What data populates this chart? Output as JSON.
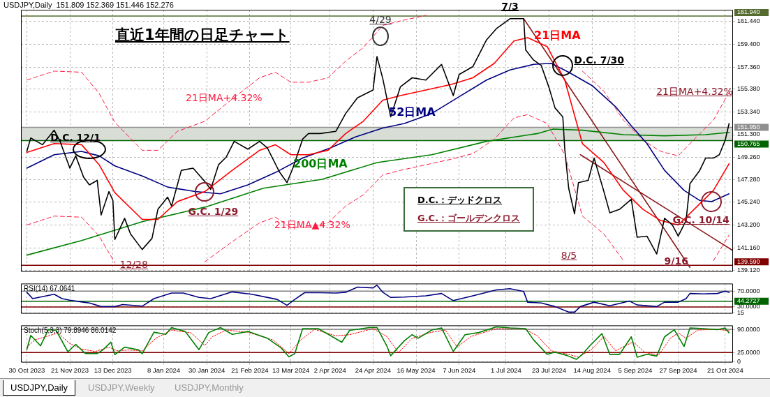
{
  "chart_data": [
    {
      "type": "line",
      "title": "直近1年間の日足チャート",
      "subtitle": "USDJPY,Daily  151.809 152.369 151.446 152.276",
      "tick_labels": "y",
      "grid": true,
      "xlim": [
        "2023-10-27",
        "2024-10-25"
      ],
      "xticks": [
        {
          "value": "2023-10-30",
          "label": null
        },
        {
          "value": "2023-11-21",
          "label": null
        },
        {
          "value": "2023-12-13",
          "label": null
        },
        {
          "value": "2024-01-08",
          "label": null
        },
        {
          "value": "2024-01-30",
          "label": null
        },
        {
          "value": "2024-02-21",
          "label": null
        },
        {
          "value": "2024-03-13",
          "label": null
        },
        {
          "value": "2024-04-02",
          "label": null
        },
        {
          "value": "2024-04-24",
          "label": null
        },
        {
          "value": "2024-05-16",
          "label": null
        },
        {
          "value": "2024-06-07",
          "label": null
        },
        {
          "value": "2024-07-01",
          "label": null
        },
        {
          "value": "2024-07-23",
          "label": null
        },
        {
          "value": "2024-08-14",
          "label": null
        },
        {
          "value": "2024-09-05",
          "label": null
        },
        {
          "value": "2024-09-27",
          "label": null
        },
        {
          "value": "2024-10-21",
          "label": null
        }
      ],
      "ylim": [
        139.0,
        162.5
      ],
      "yticks": [
        {
          "value": 139.12,
          "label": "139.120"
        },
        {
          "value": 141.16,
          "label": "141.160"
        },
        {
          "value": 143.2,
          "label": "143.200"
        },
        {
          "value": 145.24,
          "label": "145.240"
        },
        {
          "value": 147.28,
          "label": "147.280"
        },
        {
          "value": 149.26,
          "label": "149.260"
        },
        {
          "value": 151.3,
          "label": "151.300"
        },
        {
          "value": 153.34,
          "label": "153.340"
        },
        {
          "value": 155.38,
          "label": "155.380"
        },
        {
          "value": 157.36,
          "label": "157.360"
        },
        {
          "value": 159.4,
          "label": "159.400"
        },
        {
          "value": 161.44,
          "label": "161.440"
        }
      ],
      "series": [
        {
          "color": "#000000",
          "x": [
            "2023-10-30",
            "2023-11-01",
            "2023-11-07",
            "2023-11-13",
            "2023-11-16",
            "2023-11-21",
            "2023-11-24",
            "2023-11-28",
            "2023-12-01",
            "2023-12-05",
            "2023-12-07",
            "2023-12-11",
            "2023-12-13",
            "2023-12-14",
            "2023-12-19",
            "2023-12-22",
            "2023-12-28",
            "2024-01-02",
            "2024-01-05",
            "2024-01-10",
            "2024-01-12",
            "2024-01-17",
            "2024-01-23",
            "2024-01-29",
            "2024-02-01",
            "2024-02-05",
            "2024-02-09",
            "2024-02-13",
            "2024-02-20",
            "2024-02-26",
            "2024-03-01",
            "2024-03-07",
            "2024-03-11",
            "2024-03-14",
            "2024-03-19",
            "2024-03-22",
            "2024-03-28",
            "2024-04-05",
            "2024-04-10",
            "2024-04-16",
            "2024-04-24",
            "2024-04-26",
            "2024-04-29",
            "2024-05-03",
            "2024-05-08",
            "2024-05-14",
            "2024-05-21",
            "2024-05-29",
            "2024-06-04",
            "2024-06-07",
            "2024-06-14",
            "2024-06-21",
            "2024-06-26",
            "2024-07-03",
            "2024-07-10",
            "2024-07-11",
            "2024-07-15",
            "2024-07-19",
            "2024-07-23",
            "2024-07-26",
            "2024-07-30",
            "2024-07-31",
            "2024-08-02",
            "2024-08-05",
            "2024-08-07",
            "2024-08-12",
            "2024-08-15",
            "2024-08-20",
            "2024-08-23",
            "2024-08-28",
            "2024-09-03",
            "2024-09-06",
            "2024-09-11",
            "2024-09-16",
            "2024-09-20",
            "2024-09-24",
            "2024-09-27",
            "2024-10-01",
            "2024-10-03",
            "2024-10-08",
            "2024-10-11",
            "2024-10-15",
            "2024-10-18",
            "2024-10-21",
            "2024-10-23"
          ],
          "values": [
            149.8,
            151.0,
            150.4,
            151.7,
            150.7,
            148.3,
            149.4,
            147.5,
            146.8,
            147.2,
            144.1,
            146.2,
            145.4,
            141.9,
            143.8,
            142.4,
            141.0,
            142.0,
            144.6,
            145.7,
            144.9,
            148.1,
            148.3,
            147.1,
            146.4,
            148.6,
            149.3,
            150.7,
            150.0,
            150.7,
            150.1,
            148.0,
            147.0,
            148.3,
            150.9,
            151.4,
            151.4,
            151.6,
            153.2,
            154.6,
            155.3,
            158.3,
            156.3,
            152.9,
            155.6,
            156.4,
            156.2,
            157.6,
            154.8,
            156.7,
            157.4,
            159.8,
            160.8,
            161.7,
            161.7,
            158.9,
            158.0,
            157.5,
            155.5,
            153.7,
            152.9,
            150.0,
            146.5,
            144.2,
            147.0,
            147.2,
            149.2,
            146.2,
            144.3,
            144.6,
            145.5,
            142.1,
            142.2,
            140.6,
            143.8,
            143.2,
            142.2,
            143.6,
            146.9,
            148.1,
            149.2,
            149.2,
            149.5,
            150.8,
            152.3
          ]
        },
        {
          "name": "21日MA",
          "color": "#ff0000",
          "x": [
            "2023-10-30",
            "2023-11-13",
            "2023-11-27",
            "2023-12-06",
            "2023-12-14",
            "2023-12-28",
            "2024-01-05",
            "2024-01-15",
            "2024-01-29",
            "2024-02-12",
            "2024-02-26",
            "2024-03-05",
            "2024-03-13",
            "2024-03-22",
            "2024-04-01",
            "2024-04-10",
            "2024-04-19",
            "2024-04-29",
            "2024-05-08",
            "2024-05-21",
            "2024-06-03",
            "2024-06-14",
            "2024-06-25",
            "2024-07-05",
            "2024-07-12",
            "2024-07-22",
            "2024-07-31",
            "2024-08-09",
            "2024-08-20",
            "2024-08-30",
            "2024-09-09",
            "2024-09-18",
            "2024-09-27",
            "2024-10-08",
            "2024-10-15",
            "2024-10-23"
          ],
          "values": [
            149.7,
            150.5,
            150.4,
            148.6,
            146.1,
            143.7,
            143.7,
            145.3,
            146.2,
            148.1,
            149.9,
            150.4,
            149.5,
            149.5,
            149.9,
            151.4,
            152.5,
            154.4,
            154.8,
            155.3,
            155.8,
            156.4,
            157.7,
            159.7,
            160.0,
            159.2,
            156.2,
            150.5,
            148.8,
            146.3,
            144.6,
            143.6,
            143.2,
            145.1,
            146.3,
            148.7
          ]
        },
        {
          "name": "52日MA",
          "color": "#000080",
          "x": [
            "2023-10-30",
            "2023-11-13",
            "2023-11-27",
            "2023-12-06",
            "2023-12-14",
            "2023-12-28",
            "2024-01-10",
            "2024-01-24",
            "2024-02-06",
            "2024-02-20",
            "2024-03-05",
            "2024-03-19",
            "2024-04-02",
            "2024-04-15",
            "2024-04-29",
            "2024-05-10",
            "2024-05-24",
            "2024-06-07",
            "2024-06-21",
            "2024-07-03",
            "2024-07-15",
            "2024-07-24",
            "2024-08-02",
            "2024-08-14",
            "2024-08-26",
            "2024-09-03",
            "2024-09-11",
            "2024-09-20",
            "2024-09-30",
            "2024-10-08",
            "2024-10-14",
            "2024-10-23"
          ],
          "values": [
            148.3,
            149.5,
            149.8,
            149.4,
            148.5,
            147.6,
            146.6,
            146.2,
            146.0,
            146.8,
            147.9,
            149.2,
            150.1,
            151.1,
            151.9,
            152.3,
            153.2,
            154.7,
            156.2,
            157.1,
            157.6,
            157.7,
            156.9,
            155.7,
            153.8,
            152.1,
            150.5,
            148.1,
            146.3,
            145.4,
            145.3,
            146.0
          ]
        },
        {
          "name": "200日MA",
          "color": "#008000",
          "x": [
            "2023-10-30",
            "2023-11-27",
            "2023-12-28",
            "2024-01-29",
            "2024-02-28",
            "2024-03-29",
            "2024-04-26",
            "2024-05-24",
            "2024-06-21",
            "2024-07-17",
            "2024-07-25",
            "2024-08-09",
            "2024-08-30",
            "2024-09-20",
            "2024-10-11",
            "2024-10-23"
          ],
          "values": [
            140.5,
            141.8,
            143.5,
            144.8,
            146.5,
            147.3,
            148.8,
            149.5,
            150.7,
            151.4,
            151.8,
            151.7,
            151.3,
            151.2,
            151.3,
            151.5
          ]
        },
        {
          "name": "21日MA+4.32%",
          "color": "#ff1a40",
          "line_style": "dashed",
          "x": [
            "2023-10-30",
            "2023-11-13",
            "2023-11-27",
            "2023-12-06",
            "2023-12-14",
            "2023-12-28",
            "2024-01-05",
            "2024-01-15",
            "2024-01-29",
            "2024-02-12",
            "2024-02-26",
            "2024-03-05",
            "2024-03-13",
            "2024-03-22",
            "2024-04-01",
            "2024-04-10",
            "2024-04-19",
            "2024-04-29",
            "2024-05-08",
            "2024-05-21",
            "2024-06-03",
            "2024-06-14",
            "2024-06-25",
            "2024-07-05",
            "2024-07-12",
            "2024-07-22",
            "2024-07-31",
            "2024-08-09",
            "2024-08-20",
            "2024-08-30",
            "2024-09-09",
            "2024-09-18",
            "2024-09-27",
            "2024-10-08",
            "2024-10-15",
            "2024-10-23"
          ],
          "values": [
            156.2,
            157.0,
            156.9,
            155.0,
            152.4,
            149.9,
            149.9,
            151.6,
            152.5,
            154.5,
            156.4,
            156.9,
            156.0,
            156.0,
            156.4,
            157.9,
            159.1,
            161.1,
            161.5,
            162.0,
            null,
            null,
            null,
            null,
            null,
            null,
            null,
            157.0,
            155.2,
            152.6,
            150.8,
            149.8,
            149.4,
            151.4,
            152.6,
            155.1
          ]
        },
        {
          "name": "21日MA▲4.32%",
          "color": "#ff1a40",
          "line_style": "dashed",
          "x": [
            "2023-10-30",
            "2023-11-13",
            "2023-11-27",
            "2023-12-06",
            "2023-12-14",
            "2023-12-28",
            "2024-01-05",
            "2024-01-15",
            "2024-01-29",
            "2024-02-12",
            "2024-02-26",
            "2024-03-05",
            "2024-03-13",
            "2024-03-22",
            "2024-04-01",
            "2024-04-10",
            "2024-04-19",
            "2024-04-29",
            "2024-05-08",
            "2024-05-21",
            "2024-06-03",
            "2024-06-14",
            "2024-06-25",
            "2024-07-05",
            "2024-07-12",
            "2024-07-22",
            "2024-07-31",
            "2024-08-09",
            "2024-08-20",
            "2024-08-30",
            "2024-09-09",
            "2024-09-18",
            "2024-09-27",
            "2024-10-08",
            "2024-10-15",
            "2024-10-23"
          ],
          "values": [
            143.2,
            144.0,
            143.9,
            142.2,
            139.8,
            null,
            null,
            null,
            139.9,
            141.7,
            143.4,
            143.9,
            143.0,
            143.0,
            143.4,
            144.9,
            145.9,
            147.7,
            148.1,
            148.6,
            149.1,
            149.6,
            150.9,
            152.8,
            153.1,
            152.3,
            149.5,
            144.0,
            142.4,
            140.0,
            null,
            null,
            null,
            null,
            140.0,
            142.3
          ]
        },
        {
          "color": "#8b1a1a",
          "x": [
            "2024-07-10",
            "2024-10-03"
          ],
          "values": [
            161.7,
            139.4
          ]
        },
        {
          "color": "#8b1a1a",
          "x": [
            "2024-08-08",
            "2024-10-25"
          ],
          "values": [
            149.5,
            140.9
          ]
        }
      ],
      "ref_lines": [
        {
          "axis": "y",
          "value": 161.94,
          "label": "161.940",
          "color": "#556b2f"
        },
        {
          "axis": "y",
          "value": 151.95,
          "label": "151.950",
          "color": "#909090"
        },
        {
          "axis": "y",
          "value": 150.765,
          "label": "150.765",
          "color": "#006400"
        },
        {
          "axis": "y",
          "value": 139.59,
          "label": "139.590",
          "color": "#800000"
        }
      ],
      "bands": [
        {
          "axis": "y",
          "from": 150.765,
          "to": 151.95,
          "color": "#d8ddd6"
        }
      ],
      "annotations": [
        "4/29",
        {
          "text": "7/3",
          "x": "2024-07-03",
          "y": 161.9
        },
        {
          "text": "D.C. 12/1",
          "x": "2023-12-01",
          "y": 150.0
        },
        {
          "text": "G.C. 1/29",
          "x": "2024-01-29",
          "y": 146.2
        },
        {
          "text": "D.C. 7/30",
          "x": "2024-07-30",
          "y": 157.5
        },
        {
          "text": "G.C. 10/14",
          "x": "2024-10-14",
          "y": 145.3
        },
        {
          "text": "12/28",
          "x": "2023-12-28",
          "y": 140.8
        },
        "8/5",
        {
          "text": "9/16",
          "x": "2024-09-16",
          "y": 139.6
        },
        "21日MA+4.32%",
        "D.C.：デッドクロス",
        "G.C.：ゴールデンクロス"
      ]
    },
    {
      "type": "line",
      "title": "RSI(14) 67.0641",
      "tick_labels": "y",
      "grid": true,
      "xlim": [
        "2023-10-27",
        "2024-10-25"
      ],
      "xticks": [
        {
          "value": "2023-10-30",
          "label": null
        },
        {
          "value": "2023-11-21",
          "label": null
        },
        {
          "value": "2023-12-13",
          "label": null
        },
        {
          "value": "2024-01-08",
          "label": null
        },
        {
          "value": "2024-01-30",
          "label": null
        },
        {
          "value": "2024-02-21",
          "label": null
        },
        {
          "value": "2024-03-13",
          "label": null
        },
        {
          "value": "2024-04-02",
          "label": null
        },
        {
          "value": "2024-04-24",
          "label": null
        },
        {
          "value": "2024-05-16",
          "label": null
        },
        {
          "value": "2024-06-07",
          "label": null
        },
        {
          "value": "2024-07-01",
          "label": null
        },
        {
          "value": "2024-07-23",
          "label": null
        },
        {
          "value": "2024-08-14",
          "label": null
        },
        {
          "value": "2024-09-05",
          "label": null
        },
        {
          "value": "2024-09-27",
          "label": null
        },
        {
          "value": "2024-10-21",
          "label": null
        }
      ],
      "ylim": [
        13,
        89
      ],
      "yticks": [
        15,
        {
          "value": 30,
          "label": "30.0000"
        },
        {
          "value": 70,
          "label": "70.0000"
        }
      ],
      "series": [
        {
          "color": "#000080",
          "x": [
            "2023-10-30",
            "2023-11-02",
            "2023-11-13",
            "2023-11-17",
            "2023-11-21",
            "2023-11-28",
            "2023-12-01",
            "2023-12-07",
            "2023-12-14",
            "2023-12-18",
            "2023-12-28",
            "2024-01-03",
            "2024-01-12",
            "2024-01-18",
            "2024-01-26",
            "2024-02-01",
            "2024-02-12",
            "2024-02-22",
            "2024-03-06",
            "2024-03-11",
            "2024-03-15",
            "2024-03-20",
            "2024-03-28",
            "2024-04-05",
            "2024-04-10",
            "2024-04-16",
            "2024-04-24",
            "2024-04-26",
            "2024-04-29",
            "2024-05-03",
            "2024-05-10",
            "2024-05-21",
            "2024-05-29",
            "2024-06-04",
            "2024-06-14",
            "2024-06-26",
            "2024-07-03",
            "2024-07-10",
            "2024-07-12",
            "2024-07-19",
            "2024-07-26",
            "2024-08-02",
            "2024-08-05",
            "2024-08-08",
            "2024-08-15",
            "2024-08-23",
            "2024-09-02",
            "2024-09-06",
            "2024-09-16",
            "2024-09-20",
            "2024-09-27",
            "2024-10-01",
            "2024-10-03",
            "2024-10-10",
            "2024-10-17",
            "2024-10-21",
            "2024-10-23"
          ],
          "values": [
            67,
            51,
            62,
            51,
            47,
            42,
            40,
            31,
            31,
            36,
            32,
            51,
            65,
            65,
            54,
            51,
            68,
            62,
            49,
            34,
            49,
            66,
            66,
            65,
            67,
            80,
            78,
            85,
            67,
            54,
            55,
            58,
            64,
            46,
            58,
            73,
            76,
            69,
            42,
            40,
            31,
            17,
            17,
            31,
            42,
            33,
            45,
            35,
            31,
            42,
            42,
            51,
            64,
            63,
            64,
            70,
            67
          ]
        }
      ],
      "ref_lines": [
        {
          "axis": "y",
          "value": 70,
          "color": "#808080"
        },
        {
          "axis": "y",
          "value": 44.2727,
          "label": "44.2727",
          "color": "#006400"
        },
        {
          "axis": "y",
          "value": 30,
          "color": "#800000"
        }
      ]
    },
    {
      "type": "line",
      "title": "Stoch(5,3,3) 79.8946 86.0142",
      "grid": true,
      "xlim": [
        "2023-10-27",
        "2024-10-25"
      ],
      "xticks": [
        {
          "value": "2023-10-30",
          "label": "30 Oct 2023"
        },
        {
          "value": "2023-11-21",
          "label": "21 Nov 2023"
        },
        {
          "value": "2023-12-13",
          "label": "13 Dec 2023"
        },
        {
          "value": "2024-01-08",
          "label": "8 Jan 2024"
        },
        {
          "value": "2024-01-30",
          "label": "30 Jan 2024"
        },
        {
          "value": "2024-02-21",
          "label": "21 Feb 2024"
        },
        {
          "value": "2024-03-13",
          "label": "13 Mar 2024"
        },
        {
          "value": "2024-04-02",
          "label": "2 Apr 2024"
        },
        {
          "value": "2024-04-24",
          "label": "24 Apr 2024"
        },
        {
          "value": "2024-05-16",
          "label": "16 May 2024"
        },
        {
          "value": "2024-06-07",
          "label": "7 Jun 2024"
        },
        {
          "value": "2024-07-01",
          "label": "1 Jul 2024"
        },
        {
          "value": "2024-07-23",
          "label": "23 Jul 2024"
        },
        {
          "value": "2024-08-14",
          "label": "14 Aug 2024"
        },
        {
          "value": "2024-09-05",
          "label": "5 Sep 2024"
        },
        {
          "value": "2024-09-27",
          "label": "27 Sep 2024"
        },
        {
          "value": "2024-10-21",
          "label": "21 Oct 2024"
        }
      ],
      "ylim": [
        -3,
        101
      ],
      "yticks": [
        0,
        {
          "value": 25,
          "label": "25.0000"
        },
        {
          "value": 90,
          "label": "90.0000"
        }
      ],
      "series": [
        {
          "color": "#008000",
          "x": [
            "2023-10-30",
            "2023-11-01",
            "2023-11-06",
            "2023-11-10",
            "2023-11-14",
            "2023-11-20",
            "2023-11-24",
            "2023-11-29",
            "2023-12-05",
            "2023-12-08",
            "2023-12-12",
            "2023-12-14",
            "2023-12-19",
            "2023-12-26",
            "2023-12-28",
            "2024-01-03",
            "2024-01-09",
            "2024-01-12",
            "2024-01-19",
            "2024-01-26",
            "2024-01-31",
            "2024-02-06",
            "2024-02-12",
            "2024-02-20",
            "2024-03-01",
            "2024-03-08",
            "2024-03-12",
            "2024-03-15",
            "2024-03-19",
            "2024-03-27",
            "2024-04-03",
            "2024-04-08",
            "2024-04-12",
            "2024-04-22",
            "2024-04-26",
            "2024-05-01",
            "2024-05-03",
            "2024-05-10",
            "2024-05-14",
            "2024-05-17",
            "2024-05-24",
            "2024-05-29",
            "2024-06-04",
            "2024-06-10",
            "2024-06-17",
            "2024-06-26",
            "2024-07-03",
            "2024-07-11",
            "2024-07-15",
            "2024-07-22",
            "2024-07-26",
            "2024-08-01",
            "2024-08-06",
            "2024-08-09",
            "2024-08-13",
            "2024-08-19",
            "2024-08-23",
            "2024-08-28",
            "2024-09-03",
            "2024-09-06",
            "2024-09-11",
            "2024-09-16",
            "2024-09-20",
            "2024-09-25",
            "2024-09-30",
            "2024-10-03",
            "2024-10-10",
            "2024-10-17",
            "2024-10-21",
            "2024-10-23"
          ],
          "values": [
            33,
            73,
            44,
            89,
            87,
            27,
            48,
            22,
            22,
            33,
            54,
            19,
            40,
            33,
            22,
            82,
            76,
            95,
            84,
            33,
            81,
            95,
            76,
            84,
            65,
            38,
            13,
            22,
            92,
            92,
            70,
            54,
            87,
            95,
            95,
            44,
            16,
            58,
            75,
            65,
            88,
            94,
            28,
            75,
            81,
            97,
            94,
            92,
            61,
            20,
            26,
            17,
            6,
            20,
            45,
            78,
            20,
            20,
            69,
            12,
            20,
            15,
            69,
            89,
            42,
            94,
            92,
            89,
            94,
            80
          ]
        },
        {
          "color": "#ff0000",
          "line_style": "dotted",
          "x": [
            "2023-10-30",
            "2023-11-03",
            "2023-11-09",
            "2023-11-15",
            "2023-11-21",
            "2023-11-27",
            "2023-12-04",
            "2023-12-11",
            "2023-12-15",
            "2023-12-21",
            "2023-12-28",
            "2024-01-04",
            "2024-01-12",
            "2024-01-22",
            "2024-01-29",
            "2024-02-02",
            "2024-02-09",
            "2024-02-20",
            "2024-03-04",
            "2024-03-12",
            "2024-03-18",
            "2024-03-25",
            "2024-04-05",
            "2024-04-12",
            "2024-04-24",
            "2024-05-01",
            "2024-05-07",
            "2024-05-14",
            "2024-05-24",
            "2024-05-31",
            "2024-06-06",
            "2024-06-13",
            "2024-06-26",
            "2024-07-10",
            "2024-07-17",
            "2024-07-24",
            "2024-08-02",
            "2024-08-07",
            "2024-08-14",
            "2024-08-20",
            "2024-08-26",
            "2024-09-04",
            "2024-09-10",
            "2024-09-17",
            "2024-09-23",
            "2024-09-27",
            "2024-10-01",
            "2024-10-07",
            "2024-10-17",
            "2024-10-23"
          ],
          "values": [
            40,
            60,
            70,
            80,
            50,
            35,
            28,
            40,
            30,
            32,
            30,
            65,
            88,
            80,
            45,
            70,
            88,
            82,
            60,
            22,
            60,
            90,
            72,
            75,
            92,
            70,
            25,
            65,
            82,
            88,
            40,
            70,
            92,
            92,
            72,
            30,
            20,
            12,
            35,
            70,
            30,
            55,
            25,
            18,
            65,
            80,
            65,
            88,
            90,
            86
          ]
        }
      ],
      "ref_lines": [
        {
          "axis": "y",
          "value": 90,
          "color": "#808080"
        },
        {
          "axis": "y",
          "value": 25,
          "color": "#800000"
        }
      ],
      "annotations": [
        "USDJPY,Daily",
        "USDJPY,Weekly",
        "USDJPY,Monthly"
      ]
    }
  ]
}
